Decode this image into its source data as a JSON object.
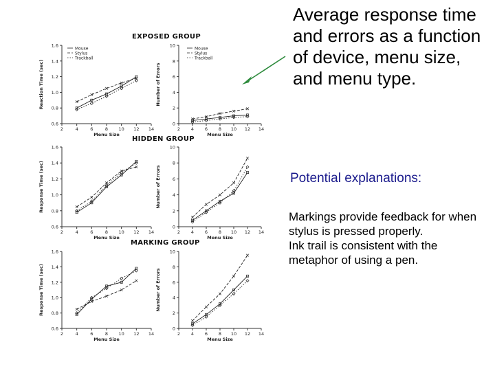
{
  "slide": {
    "heading": "Average response time and errors as a function of device, menu size, and menu type.",
    "explanations_heading": "Potential explanations:",
    "explanations_body": "Markings provide feedback for when stylus is pressed properly.\nInk trail is consistent with the metaphor of using a pen."
  },
  "colors": {
    "arrow": "#2e8b3d",
    "sub_heading": "#1a1a8c"
  },
  "figure": {
    "legend": [
      "Mouse",
      "Stylus",
      "Trackball"
    ],
    "groups": [
      {
        "title": "EXPOSED GROUP",
        "rt_ylabel": "Reaction Time (sec)",
        "rt_xlabel": "Menu Size",
        "err_ylabel": "Number of Errors",
        "err_xlabel": "Menu Size",
        "show_legend": true
      },
      {
        "title": "HIDDEN GROUP",
        "rt_ylabel": "Response Time (sec)",
        "rt_xlabel": "Menu Size",
        "err_ylabel": "Number of Errors",
        "err_xlabel": "Menu Size",
        "show_legend": false
      },
      {
        "title": "MARKING GROUP",
        "rt_ylabel": "Response Time (sec)",
        "rt_xlabel": "Menu Size",
        "err_ylabel": "Number of Errors",
        "err_xlabel": "Menu Size",
        "show_legend": false
      }
    ]
  },
  "chart_data": [
    {
      "type": "line",
      "panel": "exposed-response-time",
      "x": [
        4,
        6,
        8,
        10,
        12
      ],
      "xticks": [
        "2",
        "4",
        "6",
        "8",
        "10",
        "12",
        "14"
      ],
      "xlim": [
        2,
        14
      ],
      "yticks": [
        "0.6",
        "0.8",
        "1.0",
        "1.2",
        "1.4",
        "1.6"
      ],
      "ylim": [
        0.6,
        1.6
      ],
      "series": [
        {
          "name": "Mouse",
          "values": [
            0.8,
            0.9,
            0.98,
            1.08,
            1.2
          ]
        },
        {
          "name": "Stylus",
          "values": [
            0.88,
            0.97,
            1.05,
            1.12,
            1.18
          ]
        },
        {
          "name": "Trackball",
          "values": [
            0.78,
            0.86,
            0.95,
            1.05,
            1.15
          ]
        }
      ]
    },
    {
      "type": "line",
      "panel": "exposed-errors",
      "x": [
        4,
        6,
        8,
        10,
        12
      ],
      "xticks": [
        "2",
        "4",
        "6",
        "8",
        "10",
        "12",
        "14"
      ],
      "xlim": [
        2,
        14
      ],
      "yticks": [
        "0",
        "2",
        "4",
        "6",
        "8",
        "10"
      ],
      "ylim": [
        0,
        10
      ],
      "series": [
        {
          "name": "Mouse",
          "values": [
            0.4,
            0.6,
            0.8,
            1.0,
            1.1
          ]
        },
        {
          "name": "Stylus",
          "values": [
            0.6,
            0.9,
            1.3,
            1.6,
            1.9
          ]
        },
        {
          "name": "Trackball",
          "values": [
            0.2,
            0.4,
            0.6,
            0.8,
            0.9
          ]
        }
      ]
    },
    {
      "type": "line",
      "panel": "hidden-response-time",
      "x": [
        4,
        6,
        8,
        10,
        12
      ],
      "xticks": [
        "2",
        "4",
        "6",
        "8",
        "10",
        "12",
        "14"
      ],
      "xlim": [
        2,
        14
      ],
      "yticks": [
        "0.6",
        "0.8",
        "1.0",
        "1.2",
        "1.4",
        "1.6"
      ],
      "ylim": [
        0.6,
        1.6
      ],
      "series": [
        {
          "name": "Mouse",
          "values": [
            0.78,
            0.9,
            1.1,
            1.25,
            1.42
          ]
        },
        {
          "name": "Stylus",
          "values": [
            0.85,
            0.97,
            1.15,
            1.3,
            1.35
          ]
        },
        {
          "name": "Trackball",
          "values": [
            0.8,
            0.92,
            1.12,
            1.28,
            1.4
          ]
        }
      ]
    },
    {
      "type": "line",
      "panel": "hidden-errors",
      "x": [
        4,
        6,
        8,
        10,
        12
      ],
      "xticks": [
        "2",
        "4",
        "6",
        "8",
        "10",
        "12",
        "14"
      ],
      "xlim": [
        2,
        14
      ],
      "yticks": [
        "0",
        "2",
        "4",
        "6",
        "8",
        "10"
      ],
      "ylim": [
        0,
        10
      ],
      "series": [
        {
          "name": "Mouse",
          "values": [
            0.8,
            2.0,
            3.2,
            4.2,
            6.8
          ]
        },
        {
          "name": "Stylus",
          "values": [
            1.2,
            2.8,
            4.0,
            5.5,
            8.6
          ]
        },
        {
          "name": "Trackball",
          "values": [
            0.6,
            1.8,
            3.0,
            4.5,
            7.5
          ]
        }
      ]
    },
    {
      "type": "line",
      "panel": "marking-response-time",
      "x": [
        4,
        6,
        8,
        10,
        12
      ],
      "xticks": [
        "2",
        "4",
        "6",
        "8",
        "10",
        "12",
        "14"
      ],
      "xlim": [
        2,
        14
      ],
      "yticks": [
        "0.6",
        "0.8",
        "1.0",
        "1.2",
        "1.4",
        "1.6"
      ],
      "ylim": [
        0.6,
        1.6
      ],
      "series": [
        {
          "name": "Mouse",
          "values": [
            0.78,
            0.98,
            1.15,
            1.2,
            1.38
          ]
        },
        {
          "name": "Stylus",
          "values": [
            0.85,
            0.95,
            1.02,
            1.1,
            1.22
          ]
        },
        {
          "name": "Trackball",
          "values": [
            0.8,
            1.0,
            1.12,
            1.25,
            1.35
          ]
        }
      ]
    },
    {
      "type": "line",
      "panel": "marking-errors",
      "x": [
        4,
        6,
        8,
        10,
        12
      ],
      "xticks": [
        "2",
        "4",
        "6",
        "8",
        "10",
        "12",
        "14"
      ],
      "xlim": [
        2,
        14
      ],
      "yticks": [
        "0",
        "2",
        "4",
        "6",
        "8",
        "10"
      ],
      "ylim": [
        0,
        10
      ],
      "series": [
        {
          "name": "Mouse",
          "values": [
            0.6,
            1.8,
            3.2,
            5.0,
            6.8
          ]
        },
        {
          "name": "Stylus",
          "values": [
            1.0,
            2.8,
            4.5,
            6.8,
            9.5
          ]
        },
        {
          "name": "Trackball",
          "values": [
            0.4,
            1.5,
            3.0,
            4.5,
            6.2
          ]
        }
      ]
    }
  ]
}
